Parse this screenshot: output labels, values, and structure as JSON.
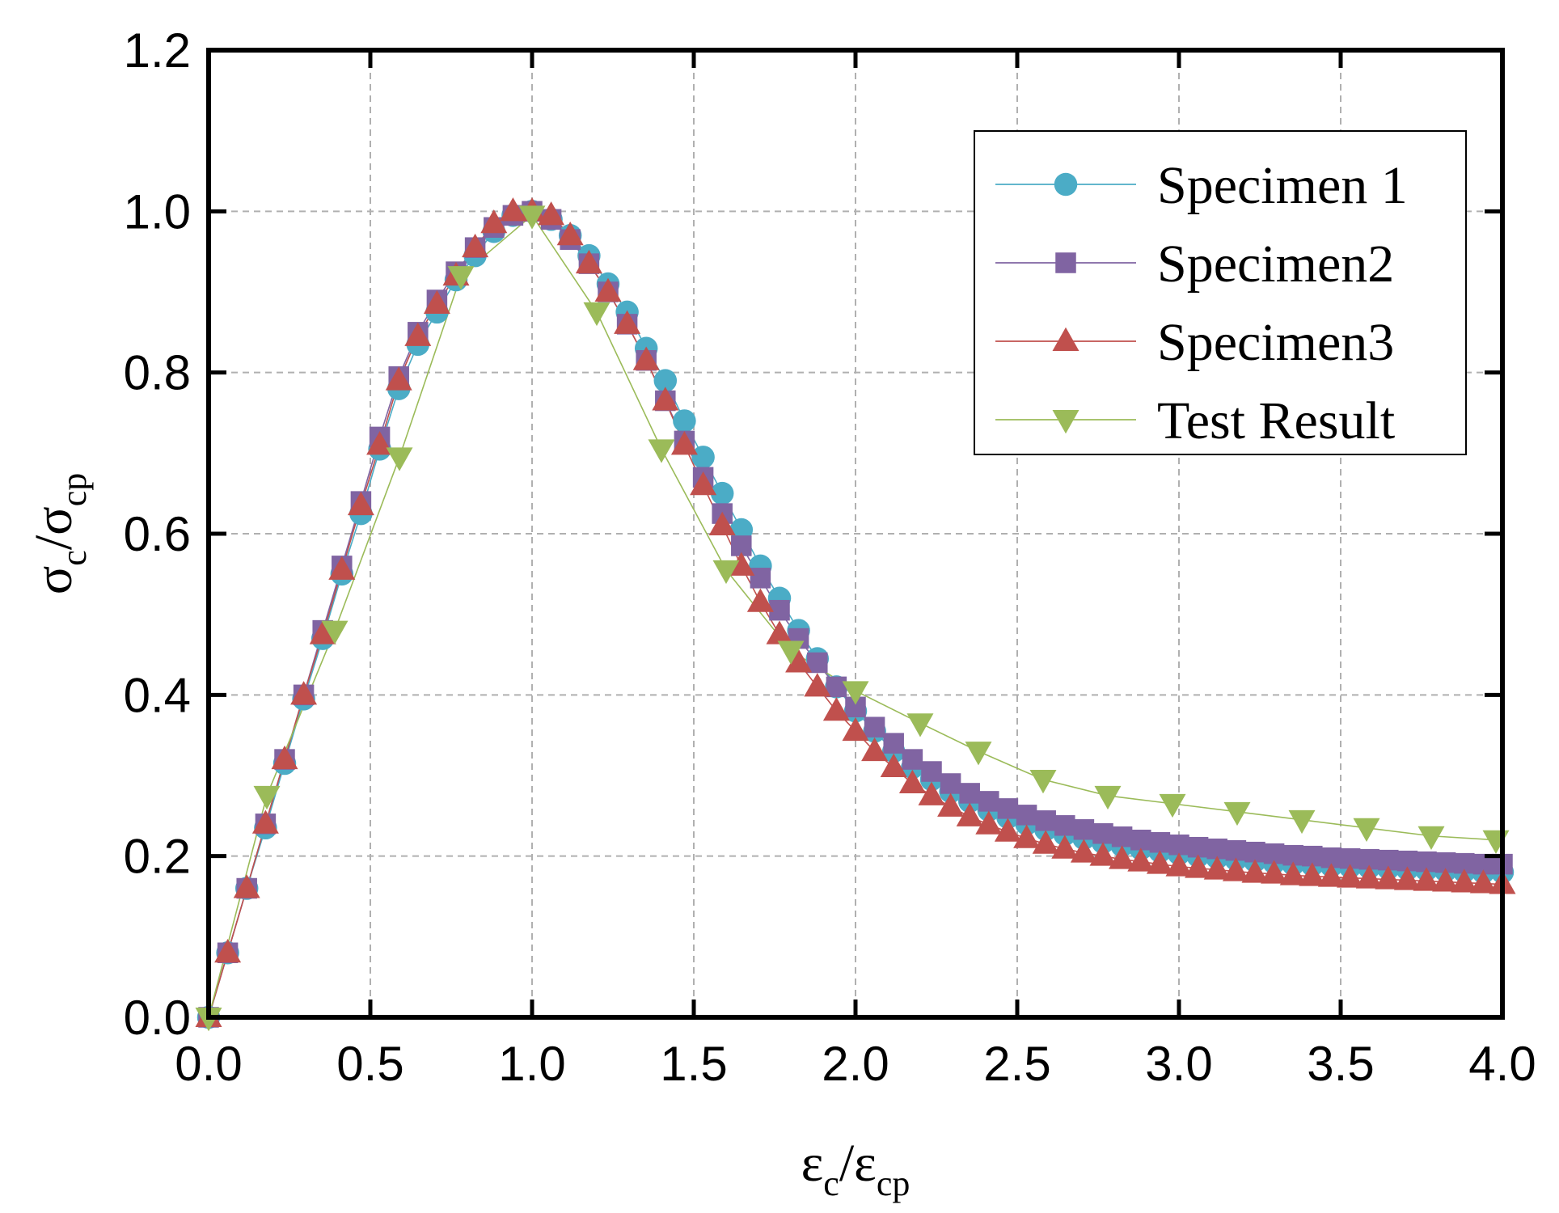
{
  "chart_data": {
    "type": "line",
    "title": "",
    "xlabel": {
      "base": "ε",
      "sub": "c",
      "sep": "/",
      "base2": "ε",
      "sub2": "cp"
    },
    "ylabel": {
      "base": "σ",
      "sub": "c",
      "sep": "/",
      "base2": "σ",
      "sub2": "cp"
    },
    "xlim": [
      0,
      4
    ],
    "ylim": [
      0,
      1.2
    ],
    "xticks": [
      "0.0",
      "0.5",
      "1.0",
      "1.5",
      "2.0",
      "2.5",
      "3.0",
      "3.5",
      "4.0"
    ],
    "yticks": [
      "0.0",
      "0.2",
      "0.4",
      "0.6",
      "0.8",
      "1.0",
      "1.2"
    ],
    "grid": true,
    "legend_position": "top-right",
    "series": [
      {
        "name": "Specimen 1",
        "marker": "circle",
        "color": "#4bacc6",
        "x": [
          0.0,
          0.059,
          0.118,
          0.176,
          0.235,
          0.294,
          0.353,
          0.412,
          0.471,
          0.529,
          0.588,
          0.647,
          0.706,
          0.765,
          0.824,
          0.882,
          0.941,
          1.0,
          1.059,
          1.118,
          1.176,
          1.235,
          1.294,
          1.353,
          1.412,
          1.471,
          1.529,
          1.588,
          1.647,
          1.706,
          1.765,
          1.824,
          1.882,
          1.941,
          2.0,
          2.059,
          2.118,
          2.176,
          2.235,
          2.294,
          2.353,
          2.412,
          2.471,
          2.529,
          2.588,
          2.647,
          2.706,
          2.765,
          2.824,
          2.882,
          2.941,
          3.0,
          3.059,
          3.118,
          3.176,
          3.235,
          3.294,
          3.353,
          3.412,
          3.471,
          3.529,
          3.588,
          3.647,
          3.706,
          3.765,
          3.824,
          3.882,
          3.941,
          4.0
        ],
        "y": [
          0.0,
          0.08,
          0.16,
          0.235,
          0.315,
          0.395,
          0.47,
          0.55,
          0.625,
          0.705,
          0.78,
          0.835,
          0.875,
          0.915,
          0.945,
          0.975,
          0.995,
          1.0,
          0.99,
          0.97,
          0.945,
          0.91,
          0.875,
          0.83,
          0.79,
          0.74,
          0.695,
          0.65,
          0.605,
          0.56,
          0.52,
          0.48,
          0.445,
          0.41,
          0.38,
          0.355,
          0.33,
          0.31,
          0.295,
          0.28,
          0.268,
          0.257,
          0.248,
          0.24,
          0.233,
          0.227,
          0.222,
          0.217,
          0.213,
          0.209,
          0.206,
          0.203,
          0.2,
          0.198,
          0.196,
          0.194,
          0.192,
          0.19,
          0.189,
          0.188,
          0.187,
          0.186,
          0.185,
          0.184,
          0.183,
          0.182,
          0.181,
          0.18,
          0.18
        ]
      },
      {
        "name": "Specimen2",
        "marker": "square",
        "color": "#8064a2",
        "x": [
          0.0,
          0.059,
          0.118,
          0.176,
          0.235,
          0.294,
          0.353,
          0.412,
          0.471,
          0.529,
          0.588,
          0.647,
          0.706,
          0.765,
          0.824,
          0.882,
          0.941,
          1.0,
          1.059,
          1.118,
          1.176,
          1.235,
          1.294,
          1.353,
          1.412,
          1.471,
          1.529,
          1.588,
          1.647,
          1.706,
          1.765,
          1.824,
          1.882,
          1.941,
          2.0,
          2.059,
          2.118,
          2.176,
          2.235,
          2.294,
          2.353,
          2.412,
          2.471,
          2.529,
          2.588,
          2.647,
          2.706,
          2.765,
          2.824,
          2.882,
          2.941,
          3.0,
          3.059,
          3.118,
          3.176,
          3.235,
          3.294,
          3.353,
          3.412,
          3.471,
          3.529,
          3.588,
          3.647,
          3.706,
          3.765,
          3.824,
          3.882,
          3.941,
          4.0
        ],
        "y": [
          0.0,
          0.08,
          0.16,
          0.24,
          0.32,
          0.4,
          0.48,
          0.56,
          0.64,
          0.72,
          0.795,
          0.85,
          0.89,
          0.925,
          0.955,
          0.98,
          0.995,
          1.0,
          0.99,
          0.965,
          0.935,
          0.9,
          0.86,
          0.815,
          0.765,
          0.715,
          0.67,
          0.625,
          0.585,
          0.545,
          0.505,
          0.47,
          0.44,
          0.41,
          0.385,
          0.36,
          0.34,
          0.32,
          0.305,
          0.29,
          0.278,
          0.268,
          0.259,
          0.251,
          0.244,
          0.238,
          0.233,
          0.228,
          0.224,
          0.22,
          0.217,
          0.214,
          0.211,
          0.209,
          0.207,
          0.205,
          0.203,
          0.201,
          0.2,
          0.198,
          0.197,
          0.196,
          0.195,
          0.194,
          0.193,
          0.192,
          0.191,
          0.19,
          0.19
        ]
      },
      {
        "name": "Specimen3",
        "marker": "triangle-up",
        "color": "#c0504d",
        "x": [
          0.0,
          0.059,
          0.118,
          0.176,
          0.235,
          0.294,
          0.353,
          0.412,
          0.471,
          0.529,
          0.588,
          0.647,
          0.706,
          0.765,
          0.824,
          0.882,
          0.941,
          1.0,
          1.059,
          1.118,
          1.176,
          1.235,
          1.294,
          1.353,
          1.412,
          1.471,
          1.529,
          1.588,
          1.647,
          1.706,
          1.765,
          1.824,
          1.882,
          1.941,
          2.0,
          2.059,
          2.118,
          2.176,
          2.235,
          2.294,
          2.353,
          2.412,
          2.471,
          2.529,
          2.588,
          2.647,
          2.706,
          2.765,
          2.824,
          2.882,
          2.941,
          3.0,
          3.059,
          3.118,
          3.176,
          3.235,
          3.294,
          3.353,
          3.412,
          3.471,
          3.529,
          3.588,
          3.647,
          3.706,
          3.765,
          3.824,
          3.882,
          3.941,
          4.0
        ],
        "y": [
          0.0,
          0.08,
          0.16,
          0.24,
          0.32,
          0.4,
          0.475,
          0.555,
          0.635,
          0.71,
          0.79,
          0.845,
          0.885,
          0.92,
          0.955,
          0.985,
          1.0,
          1.0,
          0.995,
          0.97,
          0.935,
          0.9,
          0.86,
          0.815,
          0.765,
          0.71,
          0.66,
          0.61,
          0.56,
          0.515,
          0.475,
          0.44,
          0.41,
          0.38,
          0.355,
          0.33,
          0.31,
          0.29,
          0.275,
          0.261,
          0.249,
          0.239,
          0.23,
          0.222,
          0.215,
          0.209,
          0.204,
          0.2,
          0.196,
          0.193,
          0.19,
          0.187,
          0.185,
          0.183,
          0.181,
          0.179,
          0.178,
          0.176,
          0.175,
          0.174,
          0.173,
          0.172,
          0.171,
          0.17,
          0.169,
          0.168,
          0.167,
          0.166,
          0.165
        ]
      },
      {
        "name": "Test Result",
        "marker": "triangle-down",
        "color": "#9bbb59",
        "x": [
          0.0,
          0.18,
          0.39,
          0.59,
          0.78,
          1.0,
          1.2,
          1.4,
          1.6,
          1.8,
          2.0,
          2.2,
          2.38,
          2.58,
          2.78,
          2.98,
          3.18,
          3.38,
          3.58,
          3.78,
          3.98
        ],
        "y": [
          0.0,
          0.275,
          0.48,
          0.695,
          0.92,
          0.995,
          0.875,
          0.705,
          0.555,
          0.455,
          0.405,
          0.365,
          0.33,
          0.295,
          0.275,
          0.265,
          0.255,
          0.245,
          0.235,
          0.225,
          0.22
        ]
      }
    ]
  }
}
